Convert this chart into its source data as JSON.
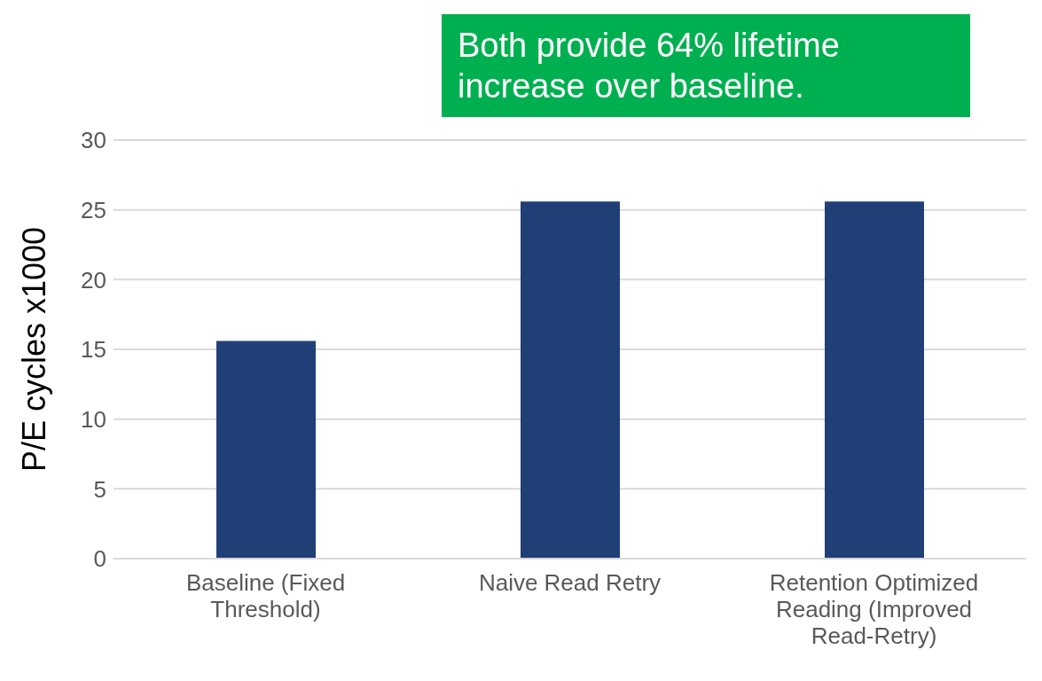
{
  "chart_data": {
    "type": "bar",
    "ylabel": "P/E cycles x1000",
    "categories": [
      "Baseline (Fixed Threshold)",
      "Naive Read Retry",
      "Retention Optimized Reading (Improved Read-Retry)"
    ],
    "values": [
      15.6,
      25.6,
      25.6
    ],
    "color": "#213f77",
    "ylim": [
      0,
      30
    ],
    "yticks": [
      0,
      5,
      10,
      15,
      20,
      25,
      30
    ],
    "grid": "y",
    "annotations": [
      "Both provide 64% lifetime increase over baseline."
    ]
  }
}
